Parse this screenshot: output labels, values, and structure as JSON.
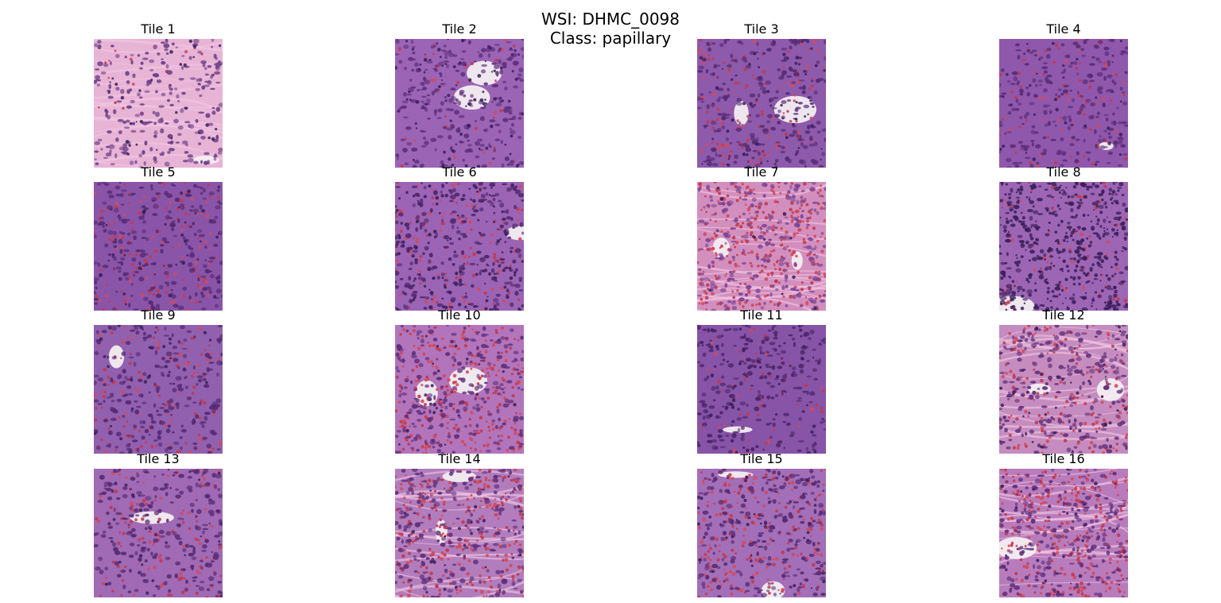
{
  "figure": {
    "title_line1": "WSI: DHMC_0098",
    "title_line2": "Class: papillary"
  },
  "colors": {
    "background": "#ffffff",
    "stroma_pink": "#e7a6d3",
    "nuclei_purple": "#8a56a9",
    "dark_nuclei": "#3a1f5a",
    "red_blood_cells": "#c13b4f",
    "lumen_white": "#f3eef1"
  },
  "tiles": [
    {
      "label": "Tile 1",
      "base": "#e8b4d6",
      "nuc": "#6d3f86",
      "rbc": 0.02,
      "dark": 0.05,
      "white": 0.12,
      "fiber": true
    },
    {
      "label": "Tile 2",
      "base": "#9b64b5",
      "nuc": "#5e2f7c",
      "rbc": 0.05,
      "dark": 0.15,
      "white": 0.15,
      "fiber": false
    },
    {
      "label": "Tile 3",
      "base": "#8e5aab",
      "nuc": "#552a73",
      "rbc": 0.18,
      "dark": 0.08,
      "white": 0.18,
      "fiber": false
    },
    {
      "label": "Tile 4",
      "base": "#8f58ac",
      "nuc": "#5a2c77",
      "rbc": 0.12,
      "dark": 0.05,
      "white": 0.06,
      "fiber": false
    },
    {
      "label": "Tile 5",
      "base": "#8a55a8",
      "nuc": "#552a73",
      "rbc": 0.2,
      "dark": 0.06,
      "white": 0.04,
      "fiber": false
    },
    {
      "label": "Tile 6",
      "base": "#9b64b5",
      "nuc": "#4d2569",
      "rbc": 0.18,
      "dark": 0.2,
      "white": 0.08,
      "fiber": false
    },
    {
      "label": "Tile 7",
      "base": "#d28fbe",
      "nuc": "#7a4596",
      "rbc": 0.45,
      "dark": 0.02,
      "white": 0.2,
      "fiber": true
    },
    {
      "label": "Tile 8",
      "base": "#9d66b5",
      "nuc": "#3a1f5a",
      "rbc": 0.1,
      "dark": 0.45,
      "white": 0.06,
      "fiber": false
    },
    {
      "label": "Tile 9",
      "base": "#9160af",
      "nuc": "#552a73",
      "rbc": 0.18,
      "dark": 0.05,
      "white": 0.08,
      "fiber": false
    },
    {
      "label": "Tile 10",
      "base": "#b275bb",
      "nuc": "#5e2f7c",
      "rbc": 0.4,
      "dark": 0.04,
      "white": 0.14,
      "fiber": false
    },
    {
      "label": "Tile 11",
      "base": "#8754a8",
      "nuc": "#4d2569",
      "rbc": 0.08,
      "dark": 0.1,
      "white": 0.1,
      "fiber": false
    },
    {
      "label": "Tile 12",
      "base": "#c58cbf",
      "nuc": "#5e2f7c",
      "rbc": 0.25,
      "dark": 0.06,
      "white": 0.18,
      "fiber": true
    },
    {
      "label": "Tile 13",
      "base": "#a06ab5",
      "nuc": "#552a73",
      "rbc": 0.18,
      "dark": 0.05,
      "white": 0.1,
      "fiber": false
    },
    {
      "label": "Tile 14",
      "base": "#b27dbc",
      "nuc": "#5e2f7c",
      "rbc": 0.4,
      "dark": 0.04,
      "white": 0.14,
      "fiber": true
    },
    {
      "label": "Tile 15",
      "base": "#a36fb8",
      "nuc": "#552a73",
      "rbc": 0.32,
      "dark": 0.06,
      "white": 0.16,
      "fiber": false
    },
    {
      "label": "Tile 16",
      "base": "#b87cbc",
      "nuc": "#5e2f7c",
      "rbc": 0.4,
      "dark": 0.05,
      "white": 0.1,
      "fiber": true
    }
  ]
}
